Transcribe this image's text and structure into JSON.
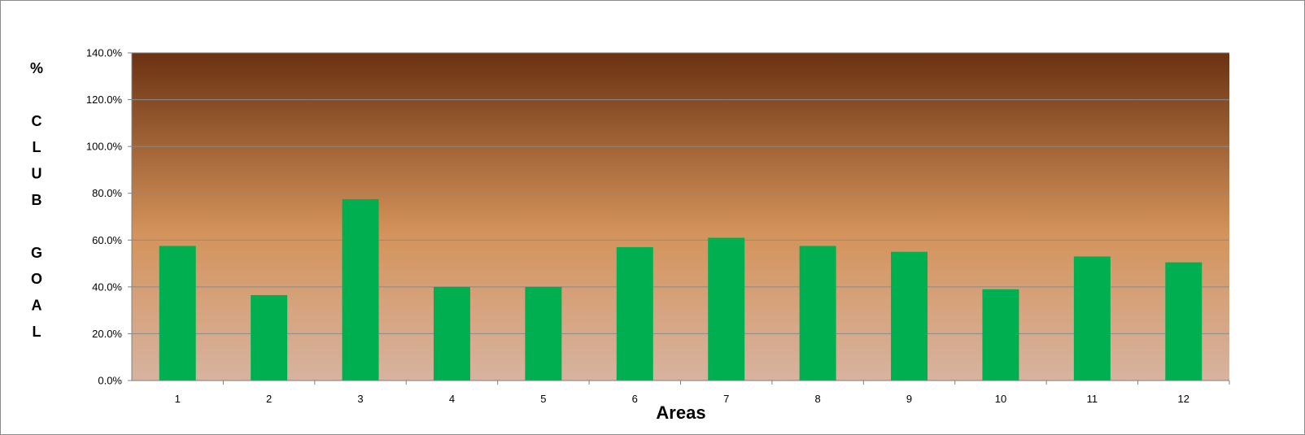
{
  "chart_data": {
    "type": "bar",
    "title": "",
    "xlabel": "Areas",
    "ylabel_letters": [
      "%",
      "",
      "C",
      "L",
      "U",
      "B",
      "",
      "G",
      "O",
      "A",
      "L"
    ],
    "categories": [
      "1",
      "2",
      "3",
      "4",
      "5",
      "6",
      "7",
      "8",
      "9",
      "10",
      "11",
      "12"
    ],
    "series": [
      {
        "values": [
          57.5,
          36.5,
          77.5,
          40.0,
          40.0,
          57.0,
          61.0,
          57.5,
          55.0,
          39.0,
          53.0,
          50.5
        ],
        "color": "#00b050"
      }
    ],
    "ylim": [
      0,
      140
    ],
    "yticks": [
      0,
      20,
      40,
      60,
      80,
      100,
      120,
      140
    ],
    "ytick_labels": [
      "0.0%",
      "20.0%",
      "40.0%",
      "60.0%",
      "80.0%",
      "100.0%",
      "120.0%",
      "140.0%"
    ],
    "grid": true,
    "legend": "none",
    "colors": {
      "plot_gradient_top": "#6b3212",
      "plot_gradient_mid": "#d4935a",
      "plot_gradient_bottom": "#d7b3a0",
      "gridline": "#8a8a8a",
      "bar": "#00b050"
    }
  }
}
